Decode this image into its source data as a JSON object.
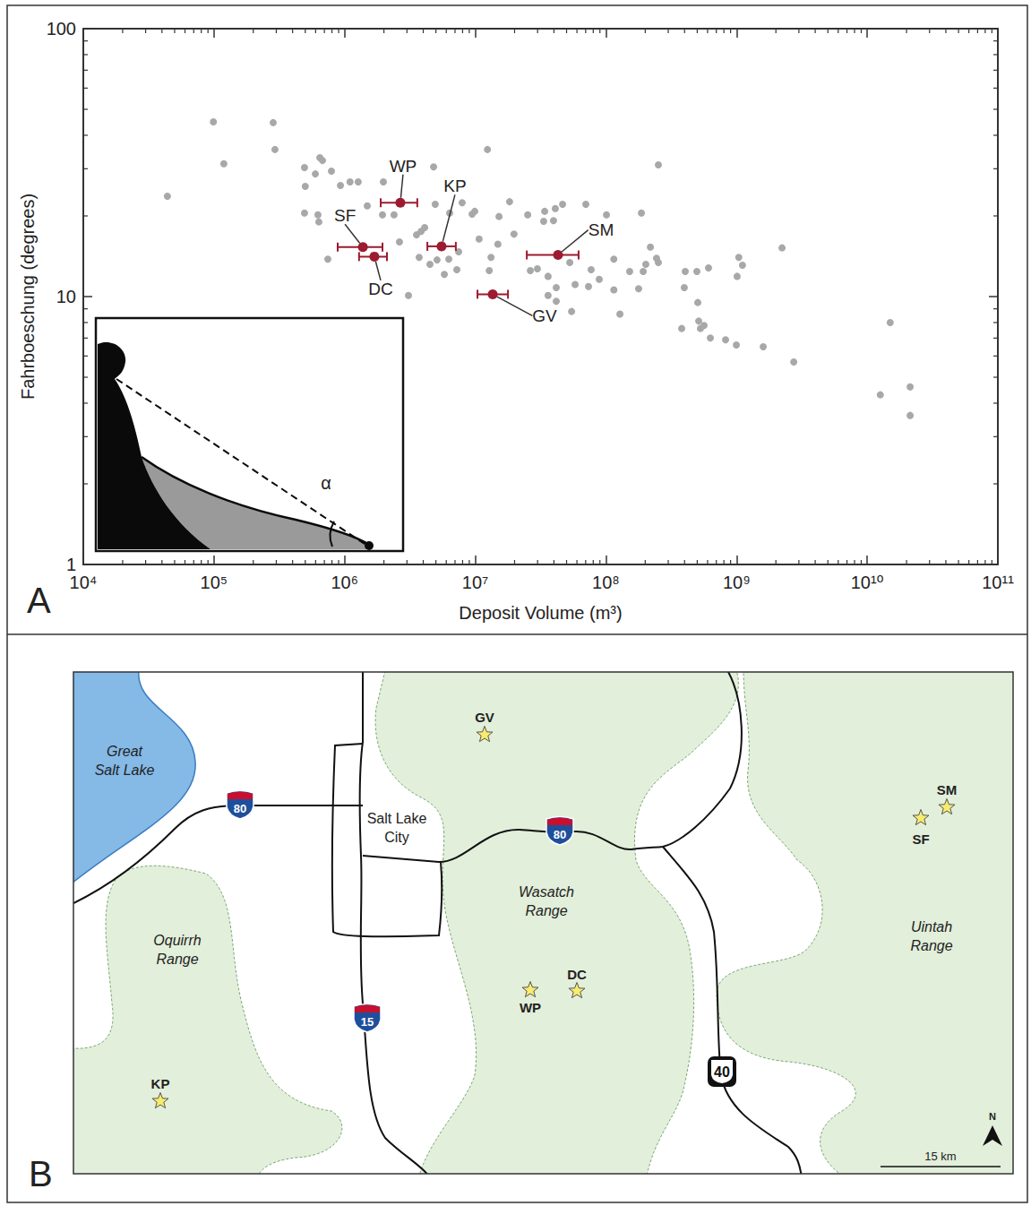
{
  "chart_data": {
    "panel_label": "A",
    "type": "scatter",
    "x_label": "Deposit Volume (m³)",
    "y_label": "Fahrboeschung (degrees)",
    "log": true,
    "grid": false,
    "xlim": [
      10000,
      100000000000
    ],
    "ylim": [
      1,
      100
    ],
    "xticks": [
      {
        "value": 10000,
        "label": "10⁴"
      },
      {
        "value": 100000,
        "label": "10⁵"
      },
      {
        "value": 1000000,
        "label": "10⁶"
      },
      {
        "value": 10000000,
        "label": "10⁷"
      },
      {
        "value": 100000000,
        "label": "10⁸"
      },
      {
        "value": 1000000000,
        "label": "10⁹"
      },
      {
        "value": 10000000000,
        "label": "10¹⁰"
      },
      {
        "value": 100000000000,
        "label": "10¹¹"
      }
    ],
    "yticks": [
      1,
      10,
      100
    ],
    "series": [
      {
        "color": "#a8a8a8",
        "x": [
          44000,
          99000,
          119000,
          284000,
          293000,
          493000,
          500000,
          597000,
          646000,
          677000,
          793000,
          929000,
          1100000,
          1270000,
          493000,
          625000,
          635000,
          744000,
          1980000,
          1950000,
          2390000,
          2630000,
          1490000,
          4800000,
          3850000,
          4100000,
          3720000,
          4500000,
          5100000,
          5800000,
          6270000,
          7230000,
          7460000,
          7940000,
          6370000,
          4940000,
          3080000,
          3550000,
          9460000,
          9910000,
          12400000,
          10700000,
          13200000,
          12800000,
          14900000,
          15200000,
          18300000,
          19800000,
          25200000,
          26400000,
          29900000,
          34000000,
          33400000,
          41000000,
          39700000,
          46600000,
          36100000,
          36100000,
          41700000,
          41700000,
          54600000,
          52900000,
          58100000,
          70200000,
          73600000,
          77100000,
          88900000,
          101000000,
          115000000,
          115000000,
          128000000,
          152000000,
          178000000,
          187000000,
          193000000,
          202000000,
          219000000,
          244000000,
          252000000,
          252000000,
          380000000,
          398000000,
          405000000,
          497000000,
          505000000,
          513000000,
          529000000,
          564000000,
          630000000,
          824000000,
          996000000,
          610000000,
          1040000000,
          1110000000,
          1010000000,
          1600000000,
          2230000000,
          2740000000,
          12600000000,
          15000000000,
          21300000000,
          21300000000
        ],
        "values": [
          23.7,
          44.9,
          31.3,
          44.6,
          35.4,
          30.3,
          25.8,
          28.7,
          33.0,
          32.2,
          29.4,
          26.0,
          26.8,
          26.8,
          20.5,
          20.2,
          19.0,
          13.8,
          26.8,
          20.2,
          20.2,
          16.0,
          21.8,
          30.5,
          17.5,
          18.1,
          14.0,
          13.2,
          13.7,
          12.1,
          13.8,
          12.6,
          14.7,
          22.4,
          20.5,
          22.1,
          10.1,
          17.0,
          20.3,
          20.8,
          35.4,
          16.4,
          14.0,
          12.5,
          15.7,
          19.9,
          22.6,
          17.1,
          20.2,
          12.5,
          12.7,
          20.8,
          19.1,
          21.3,
          19.2,
          22.1,
          11.9,
          10.1,
          9.6,
          10.8,
          8.8,
          13.4,
          11.1,
          22.1,
          10.9,
          12.6,
          11.6,
          20.2,
          13.8,
          10.6,
          8.6,
          12.4,
          10.7,
          20.5,
          12.4,
          13.2,
          15.3,
          13.9,
          31.0,
          13.4,
          7.6,
          10.8,
          12.4,
          12.4,
          9.5,
          8.1,
          7.6,
          7.8,
          7.0,
          6.9,
          6.6,
          12.8,
          14.0,
          13.1,
          11.9,
          6.5,
          15.2,
          5.7,
          4.3,
          8.0,
          4.6,
          3.6
        ]
      },
      {
        "color": "#9c1b30",
        "labels": [
          "WP",
          "KP",
          "SF",
          "DC",
          "GV",
          "SM"
        ],
        "x": [
          2670000,
          5520000,
          1380000,
          1690000,
          13600000,
          43000000
        ],
        "values": [
          22.4,
          15.4,
          15.3,
          14.1,
          10.2,
          14.3
        ],
        "x_low": [
          1890000,
          4300000,
          885000,
          1290000,
          10400000,
          24800000
        ],
        "x_high": [
          3600000,
          7100000,
          1950000,
          2110000,
          17800000,
          61800000
        ]
      }
    ],
    "inset": {
      "label": "α"
    }
  },
  "map": {
    "panel_label": "B",
    "water": [
      "Great Salt Lake"
    ],
    "city": "Salt Lake City",
    "ranges": [
      "Oquirrh Range",
      "Wasatch Range",
      "Uintah Range"
    ],
    "highways": [
      "80",
      "80",
      "15",
      "40"
    ],
    "sites": [
      "GV",
      "SM",
      "SF",
      "WP",
      "DC",
      "KP"
    ],
    "north": "N",
    "scale_bar": "15 km"
  }
}
